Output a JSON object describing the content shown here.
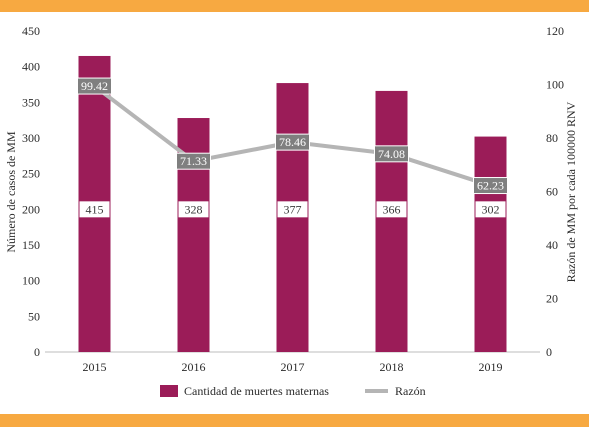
{
  "chart_data": {
    "type": "bar",
    "categories": [
      "2015",
      "2016",
      "2017",
      "2018",
      "2019"
    ],
    "series": [
      {
        "name": "Cantidad de muertes maternas",
        "type": "bar",
        "axis": "left",
        "color": "#9b1c58",
        "values": [
          415,
          328,
          377,
          366,
          302
        ]
      },
      {
        "name": "Razón",
        "type": "line",
        "axis": "right",
        "color": "#b5b5b5",
        "values": [
          99.42,
          71.33,
          78.46,
          74.08,
          62.23
        ]
      }
    ],
    "ylabel": "Número de casos de MM",
    "ylabel_right": "Razón de MM por cada 100000 RNV",
    "ylim": [
      0,
      450
    ],
    "ylim_right": [
      0,
      120
    ],
    "yticks": [
      "0",
      "50",
      "100",
      "150",
      "200",
      "250",
      "300",
      "350",
      "400",
      "450"
    ],
    "yticks_right": [
      "0",
      "20",
      "40",
      "60",
      "80",
      "100",
      "120"
    ],
    "grid": false,
    "legend_position": "bottom"
  },
  "colors": {
    "band": "#f7a941",
    "bar": "#9b1c58",
    "line": "#b5b5b5",
    "line_label_bg": "#7f7f7f"
  }
}
